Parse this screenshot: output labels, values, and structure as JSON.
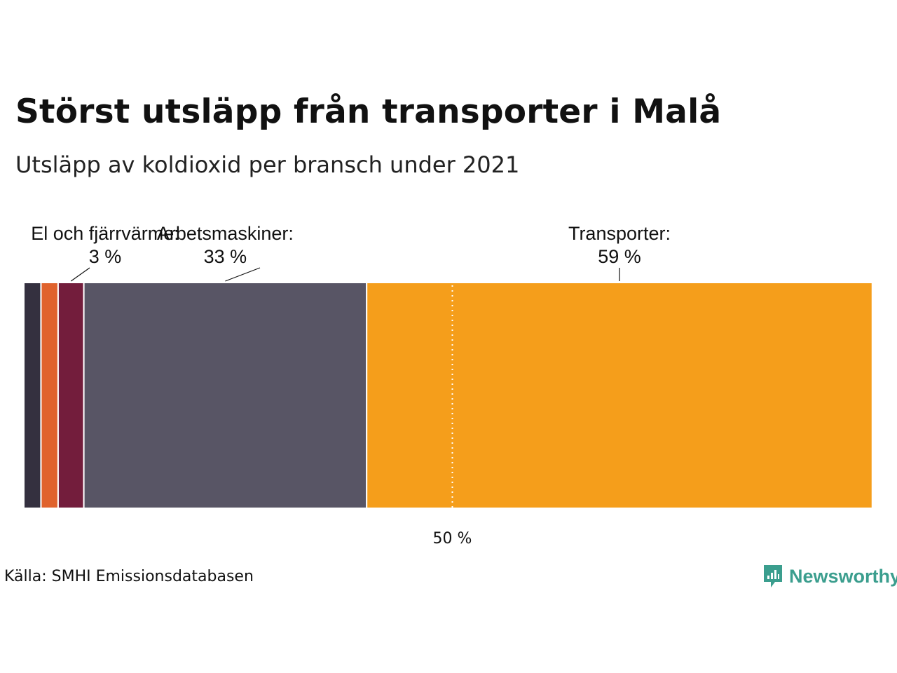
{
  "header": {
    "title": "Störst utsläpp från transporter i Malå",
    "subtitle": "Utsläpp av koldioxid per bransch under 2021"
  },
  "footer": {
    "source": "Källa: SMHI Emissionsdatabasen",
    "brand": "Newsworthy"
  },
  "chart_data": {
    "type": "bar",
    "orientation": "horizontal-stacked",
    "title": "Störst utsläpp från transporter i Malå",
    "subtitle": "Utsläpp av koldioxid per bransch under 2021",
    "unit": "%",
    "xlim": [
      0,
      100
    ],
    "reference_line": {
      "value": 50,
      "label": "50 %"
    },
    "segments": [
      {
        "name": "",
        "value": 2,
        "color": "#34303f",
        "label": "",
        "value_label": ""
      },
      {
        "name": "",
        "value": 2,
        "color": "#e0622c",
        "label": "",
        "value_label": ""
      },
      {
        "name": "El och fjärrvärme",
        "value": 3,
        "color": "#731d3c",
        "label": "El och fjärrvärme:",
        "value_label": "3 %"
      },
      {
        "name": "Arbetsmaskiner",
        "value": 33,
        "color": "#585565",
        "label": "Arbetsmaskiner:",
        "value_label": "33 %"
      },
      {
        "name": "Transporter",
        "value": 59,
        "color": "#f59e1b",
        "label": "Transporter:",
        "value_label": "59 %"
      }
    ]
  }
}
